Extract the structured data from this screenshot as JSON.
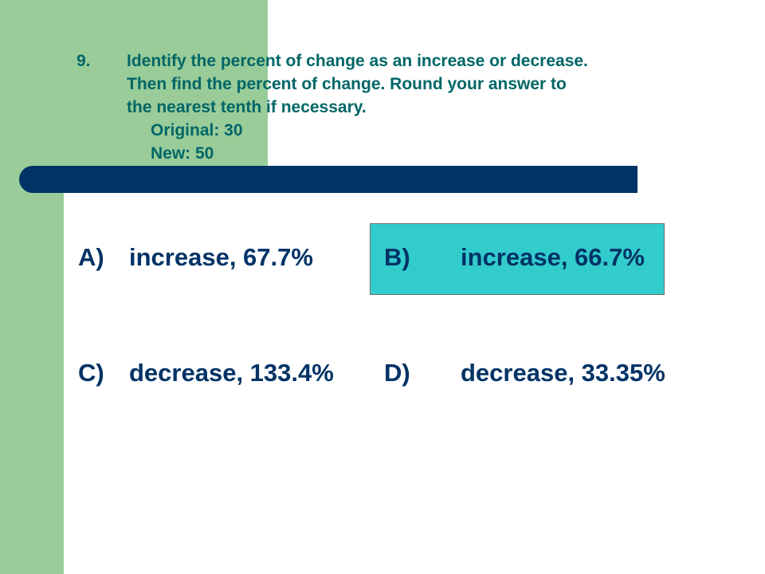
{
  "question": {
    "number": "9.",
    "lines": [
      "Identify the percent of change as an increase or decrease.",
      "Then find the percent of change.  Round your answer to",
      "the nearest tenth if necessary."
    ],
    "original_label": "Original: 30",
    "new_label": "New: 50"
  },
  "choices": [
    {
      "letter": "A)",
      "text": "increase, 67.7%"
    },
    {
      "letter": "B)",
      "text": "increase, 66.7%"
    },
    {
      "letter": "C)",
      "text": "decrease, 133.4%"
    },
    {
      "letter": "D)",
      "text": "decrease, 33.35%"
    }
  ],
  "highlighted_choice": "B)",
  "colors": {
    "sidebar": "#99cc99",
    "bar": "#003366",
    "question_text": "#006666",
    "choice_text": "#003366",
    "highlight": "#33cccc"
  }
}
